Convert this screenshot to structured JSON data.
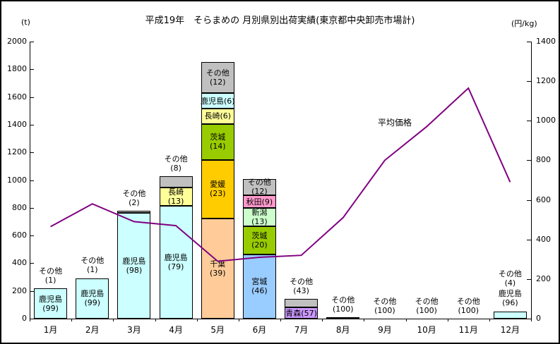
{
  "chart_data": {
    "type": "bar",
    "subtype": "stacked-bar-with-line-overlay",
    "title": "平成19年　そらまめの 月別県別出荷実績(東京都中央卸売市場計)",
    "legend_position": "none (line labeled inline)",
    "grid": "off",
    "left_axis": {
      "unit": "(t)",
      "min": 0,
      "max": 2000,
      "step": 200
    },
    "right_axis": {
      "unit": "(円/kg)",
      "min": 0,
      "max": 1400,
      "step": 200
    },
    "categories": [
      "1月",
      "2月",
      "3月",
      "4月",
      "5月",
      "6月",
      "7月",
      "8月",
      "9月",
      "10月",
      "11月",
      "12月"
    ],
    "segment_note": "pct = share (%) printed in parentheses; total_t = bar height in tonnes estimated from axis",
    "months": [
      {
        "label": "1月",
        "total_t": 220,
        "segments": [
          {
            "name": "鹿児島",
            "pct": 99,
            "color": "#CCFFFF",
            "label_pos": "inside",
            "two_line": true
          },
          {
            "name": "その他",
            "pct": 1,
            "color": "#C0C0C0",
            "label_pos": "above",
            "two_line": true
          }
        ]
      },
      {
        "label": "2月",
        "total_t": 295,
        "segments": [
          {
            "name": "鹿児島",
            "pct": 99,
            "color": "#CCFFFF",
            "label_pos": "inside",
            "two_line": true
          },
          {
            "name": "その他",
            "pct": 1,
            "color": "#C0C0C0",
            "label_pos": "above",
            "two_line": true
          }
        ]
      },
      {
        "label": "3月",
        "total_t": 780,
        "segments": [
          {
            "name": "鹿児島",
            "pct": 98,
            "color": "#CCFFFF",
            "label_pos": "inside",
            "two_line": true
          },
          {
            "name": "その他",
            "pct": 2,
            "color": "#C0C0C0",
            "label_pos": "above",
            "two_line": true
          }
        ]
      },
      {
        "label": "4月",
        "total_t": 1030,
        "segments": [
          {
            "name": "鹿児島",
            "pct": 79,
            "color": "#CCFFFF",
            "label_pos": "inside",
            "two_line": true
          },
          {
            "name": "長崎",
            "pct": 13,
            "color": "#FFFF99",
            "label_pos": "inside",
            "two_line": true
          },
          {
            "name": "その他",
            "pct": 8,
            "color": "#C0C0C0",
            "label_pos": "above",
            "two_line": true
          }
        ]
      },
      {
        "label": "5月",
        "total_t": 1850,
        "segments": [
          {
            "name": "千葉",
            "pct": 39,
            "color": "#FFCC99",
            "label_pos": "inside",
            "two_line": true
          },
          {
            "name": "愛媛",
            "pct": 23,
            "color": "#FFCC00",
            "label_pos": "inside",
            "two_line": true
          },
          {
            "name": "茨城",
            "pct": 14,
            "color": "#99CC00",
            "label_pos": "inside",
            "two_line": true
          },
          {
            "name": "長崎",
            "pct": 6,
            "color": "#FFFF99",
            "label_pos": "inside",
            "two_line": false
          },
          {
            "name": "鹿児島",
            "pct": 6,
            "color": "#CCFFFF",
            "label_pos": "inside",
            "two_line": false
          },
          {
            "name": "その他",
            "pct": 12,
            "color": "#C0C0C0",
            "label_pos": "inside",
            "two_line": true
          }
        ]
      },
      {
        "label": "6月",
        "total_t": 1010,
        "segments": [
          {
            "name": "宮城",
            "pct": 46,
            "color": "#99CCFF",
            "label_pos": "inside",
            "two_line": true
          },
          {
            "name": "茨城",
            "pct": 20,
            "color": "#99CC00",
            "label_pos": "inside",
            "two_line": true
          },
          {
            "name": "新潟",
            "pct": 13,
            "color": "#CCFFCC",
            "label_pos": "inside",
            "two_line": true
          },
          {
            "name": "秋田",
            "pct": 9,
            "color": "#FF99CC",
            "label_pos": "inside",
            "two_line": false
          },
          {
            "name": "その他",
            "pct": 12,
            "color": "#C0C0C0",
            "label_pos": "inside",
            "two_line": true
          }
        ]
      },
      {
        "label": "7月",
        "total_t": 140,
        "segments": [
          {
            "name": "青森",
            "pct": 57,
            "color": "#CC99FF",
            "label_pos": "inside",
            "two_line": false
          },
          {
            "name": "その他",
            "pct": 43,
            "color": "#C0C0C0",
            "label_pos": "above",
            "two_line": true
          }
        ]
      },
      {
        "label": "8月",
        "total_t": 10,
        "segments": [
          {
            "name": "その他",
            "pct": 100,
            "color": "#C0C0C0",
            "label_pos": "above",
            "two_line": true
          }
        ]
      },
      {
        "label": "9月",
        "total_t": 0,
        "segments": [
          {
            "name": "その他",
            "pct": 100,
            "color": "#C0C0C0",
            "label_pos": "above",
            "two_line": true
          }
        ]
      },
      {
        "label": "10月",
        "total_t": 0,
        "segments": [
          {
            "name": "その他",
            "pct": 100,
            "color": "#C0C0C0",
            "label_pos": "above",
            "two_line": true
          }
        ]
      },
      {
        "label": "11月",
        "total_t": 0,
        "segments": [
          {
            "name": "その他",
            "pct": 100,
            "color": "#C0C0C0",
            "label_pos": "above",
            "two_line": true
          }
        ]
      },
      {
        "label": "12月",
        "total_t": 55,
        "segments": [
          {
            "name": "鹿児島",
            "pct": 96,
            "color": "#CCFFFF",
            "label_pos": "above",
            "two_line": true
          },
          {
            "name": "その他",
            "pct": 4,
            "color": "#C0C0C0",
            "label_pos": "above",
            "two_line": true
          }
        ]
      }
    ],
    "price_series": {
      "name": "平均価格",
      "color": "#800080",
      "unit": "円/kg",
      "values": [
        465,
        580,
        490,
        470,
        290,
        310,
        320,
        510,
        800,
        970,
        1165,
        690
      ]
    }
  }
}
